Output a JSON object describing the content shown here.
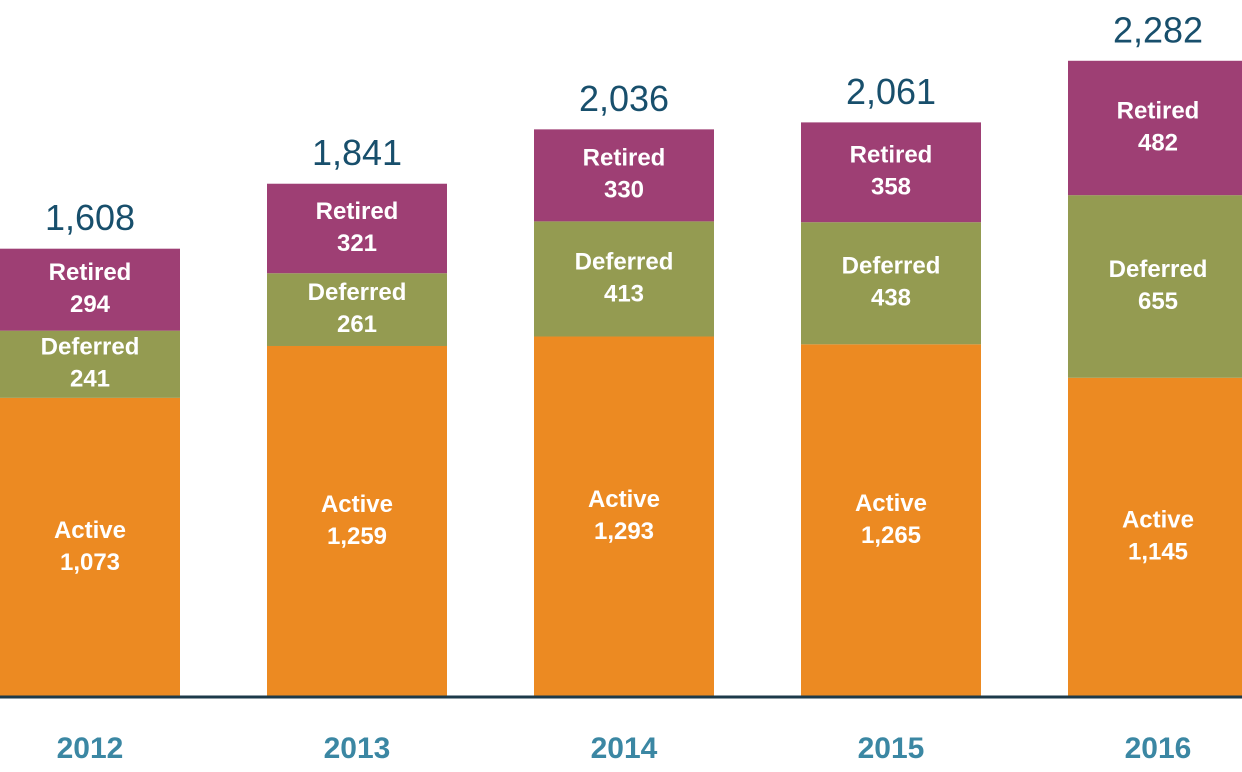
{
  "chart_data": {
    "type": "stacked_bar",
    "categories": [
      "2012",
      "2013",
      "2014",
      "2015",
      "2016"
    ],
    "series": [
      {
        "name": "Active",
        "color": "#ec8a22",
        "values": [
          1073,
          1259,
          1293,
          1265,
          1145
        ],
        "value_labels": [
          "1,073",
          "1,259",
          "1,293",
          "1,265",
          "1,145"
        ]
      },
      {
        "name": "Deferred",
        "color": "#949b51",
        "values": [
          241,
          261,
          413,
          438,
          655
        ],
        "value_labels": [
          "241",
          "261",
          "413",
          "438",
          "655"
        ]
      },
      {
        "name": "Retired",
        "color": "#9e3f74",
        "values": [
          294,
          321,
          330,
          358,
          482
        ],
        "value_labels": [
          "294",
          "321",
          "330",
          "358",
          "482"
        ]
      }
    ],
    "totals": {
      "values": [
        1608,
        1841,
        2036,
        2061,
        2282
      ],
      "value_labels": [
        "1,608",
        "1,841",
        "2,036",
        "2,061",
        "2,282"
      ]
    },
    "ylim": [
      0,
      2500
    ]
  }
}
